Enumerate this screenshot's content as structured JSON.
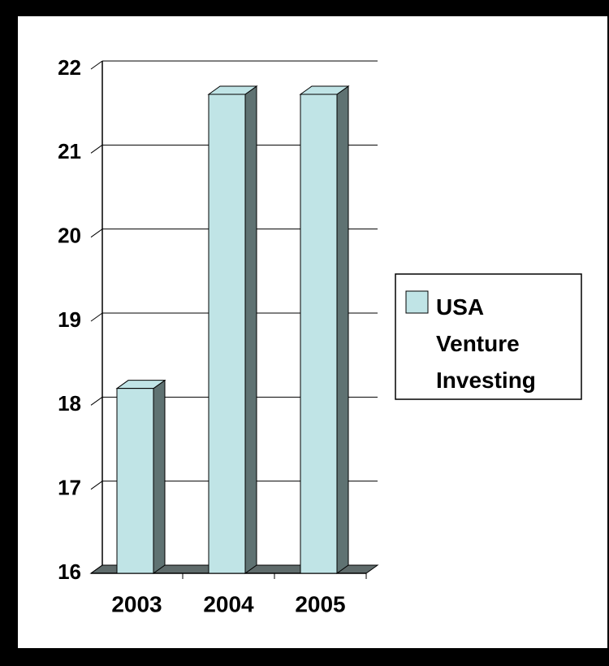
{
  "chart_data": {
    "type": "bar3d",
    "categories": [
      "2003",
      "2004",
      "2005"
    ],
    "series": [
      {
        "name": "USA Venture Investing",
        "color": "#c0e4e6",
        "values": [
          18.2,
          21.7,
          21.7
        ]
      }
    ],
    "ylim": [
      16,
      22
    ],
    "yticks": [
      16,
      17,
      18,
      19,
      20,
      21,
      22
    ],
    "grid": true,
    "legend": "right"
  }
}
